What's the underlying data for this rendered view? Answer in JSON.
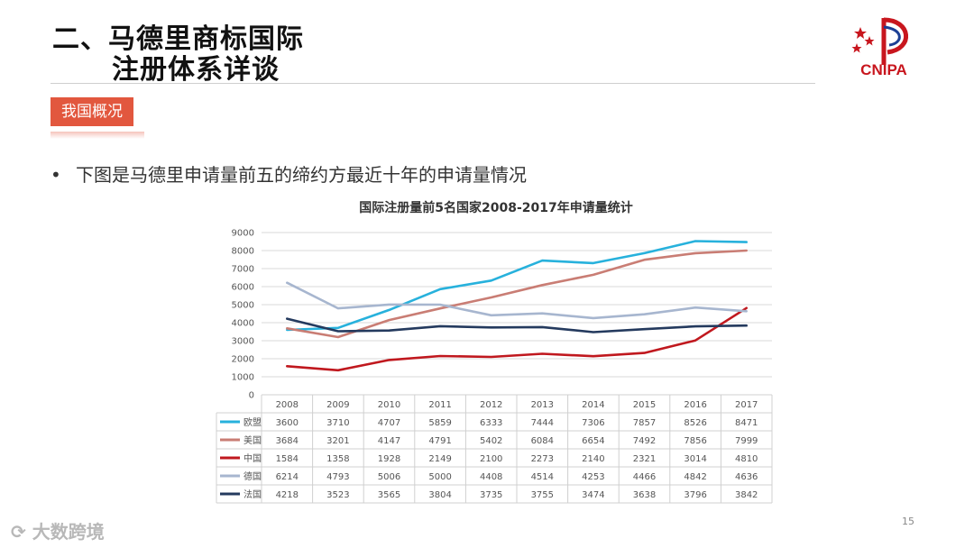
{
  "slide": {
    "title_line1": "二、马德里商标国际",
    "title_line2": "注册体系详谈",
    "logo_text": "CNIPA",
    "section_tag": "我国概况",
    "bullet": "下图是马德里申请量前五的缔约方最近十年的申请量情况",
    "page_number": "15",
    "watermark": "大数跨境"
  },
  "colors": {
    "tag_bg": "#e2573e",
    "logo_red": "#c8161e"
  },
  "chart_data": {
    "type": "line",
    "title": "国际注册量前5名国家2008-2017年申请量统计",
    "categories": [
      "2008",
      "2009",
      "2010",
      "2011",
      "2012",
      "2013",
      "2014",
      "2015",
      "2016",
      "2017"
    ],
    "ylim": [
      0,
      9000
    ],
    "yticks": [
      0,
      1000,
      2000,
      3000,
      4000,
      5000,
      6000,
      7000,
      8000,
      9000
    ],
    "grid": true,
    "legend": "data-table",
    "series": [
      {
        "name": "欧盟",
        "color": "#27b1dc",
        "values": [
          3600,
          3710,
          4707,
          5859,
          6333,
          7444,
          7306,
          7857,
          8526,
          8471
        ]
      },
      {
        "name": "美国",
        "color": "#c97d74",
        "values": [
          3684,
          3201,
          4147,
          4791,
          5402,
          6084,
          6654,
          7492,
          7856,
          7999
        ]
      },
      {
        "name": "中国",
        "color": "#c0181e",
        "values": [
          1584,
          1358,
          1928,
          2149,
          2100,
          2273,
          2140,
          2321,
          3014,
          4810
        ]
      },
      {
        "name": "德国",
        "color": "#a7b6cf",
        "values": [
          6214,
          4793,
          5006,
          5000,
          4408,
          4514,
          4253,
          4466,
          4842,
          4636
        ]
      },
      {
        "name": "法国",
        "color": "#243a5e",
        "values": [
          4218,
          3523,
          3565,
          3804,
          3735,
          3755,
          3474,
          3638,
          3796,
          3842
        ]
      }
    ]
  }
}
